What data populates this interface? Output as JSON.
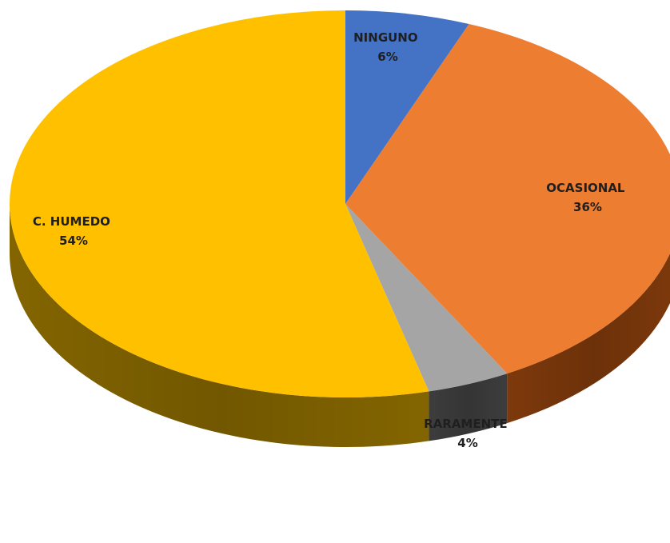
{
  "chart_data": {
    "type": "pie",
    "style": "3d",
    "categories": [
      "NINGUNO",
      "OCASIONAL",
      "RARAMENTE",
      "C. HUMEDO"
    ],
    "values": [
      6,
      36,
      4,
      54
    ],
    "value_labels": [
      "6%",
      "36%",
      "4%",
      "54%"
    ],
    "colors": [
      "#4472C4",
      "#ED7D31",
      "#A5A5A5",
      "#FFC000"
    ],
    "side_colors": [
      "#2F5597",
      "#843C0C",
      "#404040",
      "#8A6A00"
    ],
    "start": "12 o'clock",
    "direction": "clockwise",
    "legend": "none",
    "title": ""
  }
}
